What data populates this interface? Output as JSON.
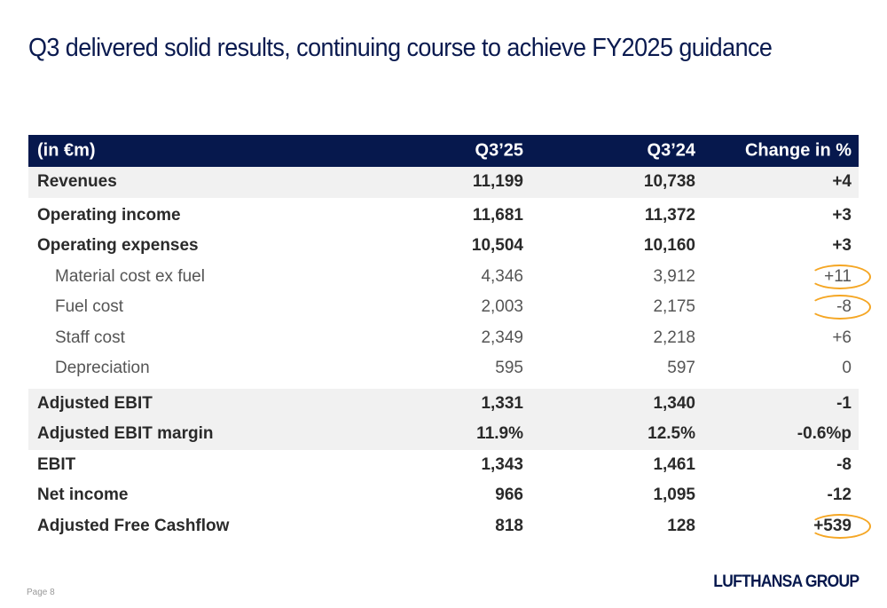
{
  "title": "Q3 delivered solid results, continuing course to achieve FY2025 guidance",
  "table": {
    "headers": [
      "(in €m)",
      "Q3’25",
      "Q3’24",
      "Change in %"
    ],
    "rows": [
      {
        "label": "Revenues",
        "q3_25": "11,199",
        "q3_24": "10,738",
        "change": "+4",
        "style": "bold shade"
      },
      {
        "label": "Operating income",
        "q3_25": "11,681",
        "q3_24": "11,372",
        "change": "+3",
        "style": "bold gap"
      },
      {
        "label": "Operating expenses",
        "q3_25": "10,504",
        "q3_24": "10,160",
        "change": "+3",
        "style": "bold"
      },
      {
        "label": "Material cost ex fuel",
        "q3_25": "4,346",
        "q3_24": "3,912",
        "change": "+11",
        "style": "sub",
        "highlighted": true
      },
      {
        "label": "Fuel cost",
        "q3_25": "2,003",
        "q3_24": "2,175",
        "change": "-8",
        "style": "sub",
        "highlighted": true
      },
      {
        "label": "Staff cost",
        "q3_25": "2,349",
        "q3_24": "2,218",
        "change": "+6",
        "style": "sub"
      },
      {
        "label": "Depreciation",
        "q3_25": "595",
        "q3_24": "597",
        "change": "0",
        "style": "sub"
      },
      {
        "label": "Adjusted EBIT",
        "q3_25": "1,331",
        "q3_24": "1,340",
        "change": "-1",
        "style": "bold shade gap2"
      },
      {
        "label": "Adjusted EBIT margin",
        "q3_25": "11.9%",
        "q3_24": "12.5%",
        "change": "-0.6%p",
        "style": "bold shade"
      },
      {
        "label": "EBIT",
        "q3_25": "1,343",
        "q3_24": "1,461",
        "change": "-8",
        "style": "bold"
      },
      {
        "label": "Net income",
        "q3_25": "966",
        "q3_24": "1,095",
        "change": "-12",
        "style": "bold"
      },
      {
        "label": "Adjusted Free Cashflow",
        "q3_25": "818",
        "q3_24": "128",
        "change": "+539",
        "style": "bold",
        "highlighted": true
      }
    ]
  },
  "highlight_color": "#f5a623",
  "footer": {
    "page": "Page 8",
    "logo": "LUFTHANSA GROUP"
  }
}
